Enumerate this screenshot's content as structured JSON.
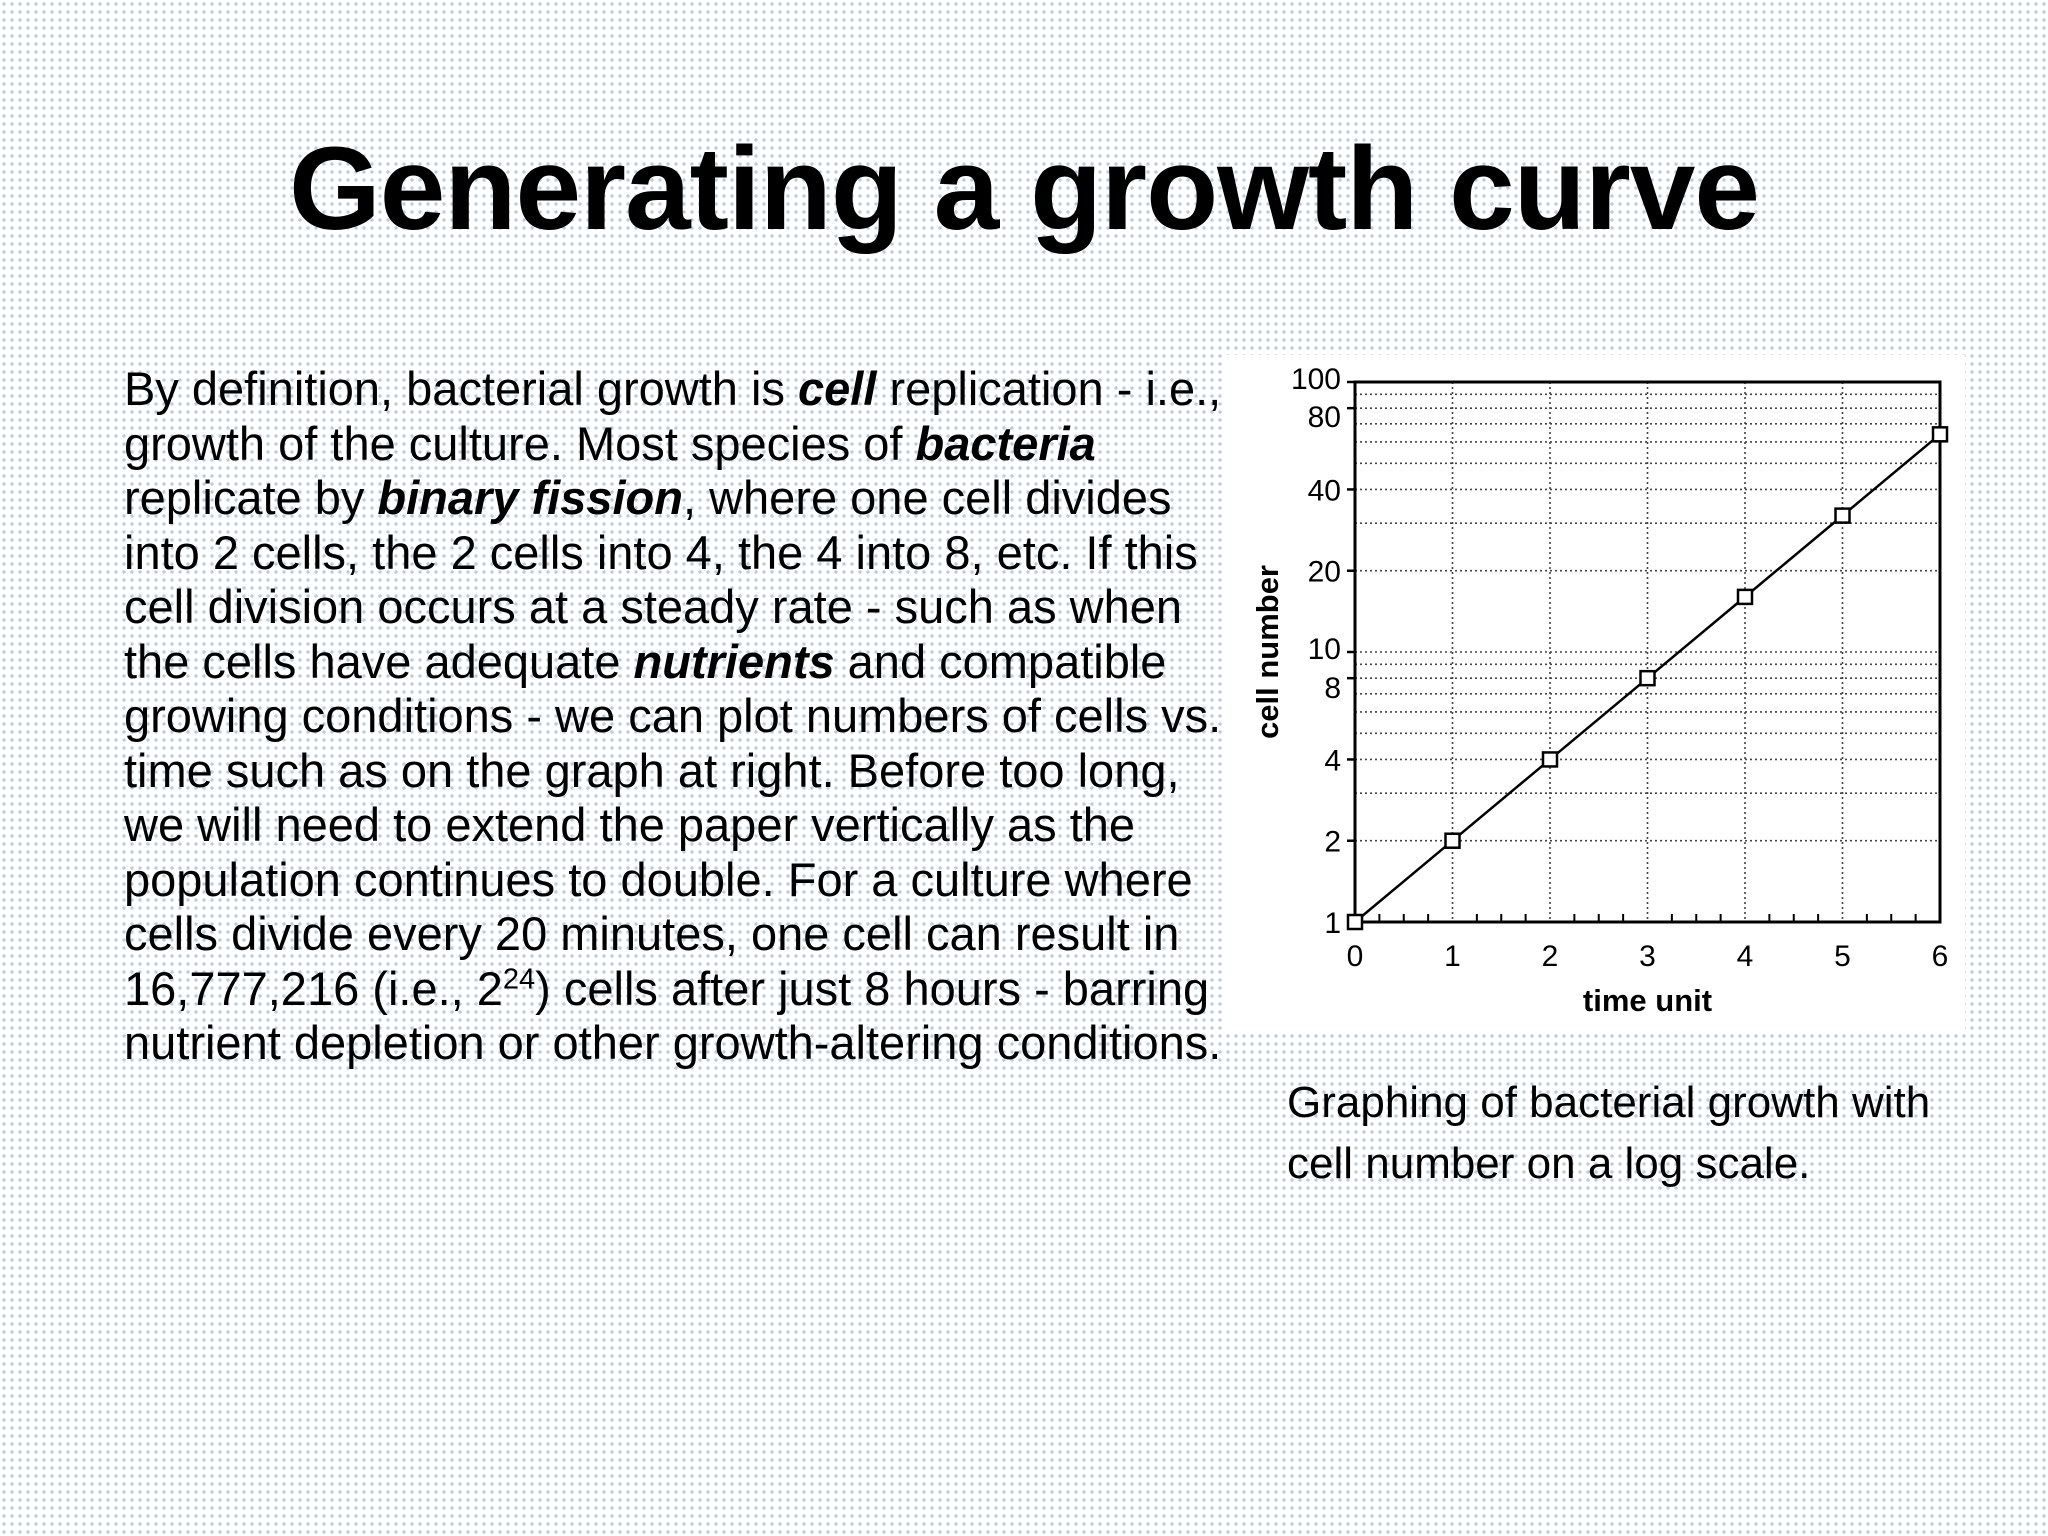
{
  "title": "Generating a growth curve",
  "paragraph": {
    "t1": "By definition, bacterial growth is ",
    "cell": "cell",
    "t2": " replication - i.e., growth of the culture. Most species of ",
    "bacteria": "bacteria",
    "t3": " replicate by ",
    "binary_fission": "binary fission",
    "t4": ", where one cell divides into 2 cells, the 2 cells into 4, the 4 into 8, etc. If this cell division occurs at a steady rate - such as when the cells have adequate ",
    "nutrients": "nutrients",
    "t5": " and compatible growing conditions - we can plot numbers of cells vs. time such as on the graph at right. Before too long, we will need to extend the paper vertically as the population continues to double. For a culture where cells divide every 20 minutes, one cell can result in 16,777,216 (i.e., 2",
    "exponent": "24",
    "t6": ") cells after just 8 hours - barring nutrient depletion or other growth-altering conditions."
  },
  "caption": "Graphing of bacterial growth with cell number on a log scale.",
  "chart_data": {
    "type": "line",
    "xlabel": "time unit",
    "ylabel": "cell number",
    "x": [
      0,
      1,
      2,
      3,
      4,
      5,
      6
    ],
    "y": [
      1,
      2,
      4,
      8,
      16,
      32,
      64
    ],
    "xlim": [
      0,
      6
    ],
    "ylim": [
      1,
      100
    ],
    "y_scale": "log",
    "x_ticks": [
      "0",
      "1",
      "2",
      "3",
      "4",
      "5",
      "6"
    ],
    "y_ticks": [
      {
        "value": 1,
        "label": "1"
      },
      {
        "value": 2,
        "label": "2"
      },
      {
        "value": 4,
        "label": "4"
      },
      {
        "value": 8,
        "label": "8"
      },
      {
        "value": 10,
        "label": "10"
      },
      {
        "value": 20,
        "label": "20"
      },
      {
        "value": 40,
        "label": "40"
      },
      {
        "value": 80,
        "label": "80"
      },
      {
        "value": 100,
        "label": "100"
      }
    ],
    "grid": true,
    "marker": "square"
  }
}
